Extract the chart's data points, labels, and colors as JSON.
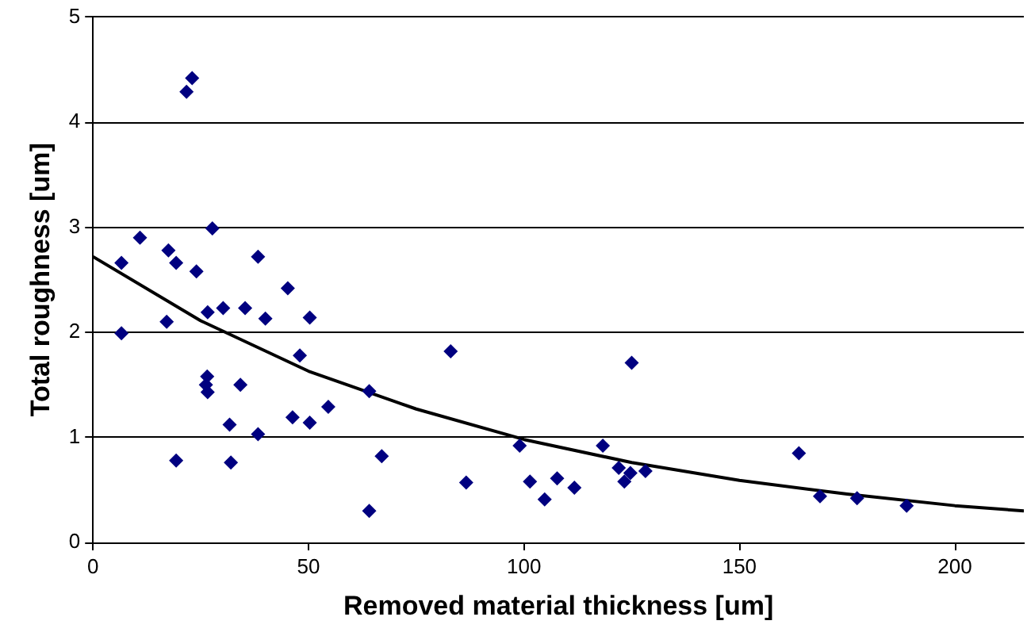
{
  "chart_data": {
    "type": "scatter",
    "xlabel": "Removed material thickness [um]",
    "ylabel": "Total roughness [um]",
    "xlim": [
      0,
      216
    ],
    "xticks": [
      0,
      50,
      100,
      150,
      200
    ],
    "ylim": [
      0,
      5
    ],
    "yticks": [
      0,
      1,
      2,
      3,
      4,
      5
    ],
    "grid": "y",
    "marker": "diamond",
    "series": [
      {
        "type": "scatter",
        "color": "#000080",
        "x": [
          6.6,
          6.6,
          10.9,
          17.5,
          17.1,
          19.3,
          19.3,
          21.7,
          23,
          24,
          26.6,
          26.5,
          26.2,
          26.6,
          27.7,
          30.2,
          31.7,
          32,
          34.2,
          35.3,
          38.3,
          38.3,
          40,
          45.2,
          46.3,
          48,
          50.3,
          50.3,
          54.6,
          64.1,
          64.1,
          67,
          83,
          86.6,
          99,
          101.4,
          104.8,
          107.7,
          111.7,
          118.3,
          122,
          123.3,
          124.7,
          125,
          128.2,
          163.8,
          168.7,
          177.3,
          188.8
        ],
        "values": [
          2.66,
          1.99,
          2.9,
          2.78,
          2.1,
          2.66,
          0.78,
          4.29,
          4.42,
          2.58,
          2.19,
          1.58,
          1.5,
          1.43,
          2.99,
          2.23,
          1.12,
          0.76,
          1.5,
          2.23,
          2.72,
          1.03,
          2.13,
          2.42,
          1.19,
          1.78,
          1.14,
          2.14,
          1.29,
          1.44,
          0.3,
          0.82,
          1.82,
          0.57,
          0.92,
          0.58,
          0.41,
          0.61,
          0.52,
          0.92,
          0.71,
          0.58,
          0.66,
          1.71,
          0.68,
          0.85,
          0.44,
          0.42,
          0.35
        ]
      },
      {
        "type": "line",
        "color": "#000000",
        "marker": "none",
        "x": [
          0,
          25,
          50,
          75,
          100,
          125,
          150,
          175,
          200,
          216
        ],
        "values": [
          2.72,
          2.11,
          1.63,
          1.27,
          0.98,
          0.76,
          0.59,
          0.46,
          0.35,
          0.3
        ]
      }
    ]
  }
}
